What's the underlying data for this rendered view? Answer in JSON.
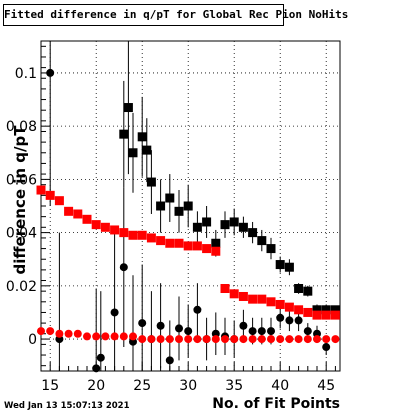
{
  "chart_data": {
    "type": "scatter",
    "title": "Fitted difference in q/pT for Global Rec Pion NoHits",
    "xlabel": "No. of Fit Points",
    "ylabel": "difference in q/pT",
    "xlim": [
      14,
      46.5
    ],
    "ylim": [
      -0.012,
      0.112
    ],
    "x_ticks": [
      15,
      20,
      25,
      30,
      35,
      40,
      45
    ],
    "y_ticks": [
      0,
      0.02,
      0.04,
      0.06,
      0.08,
      0.1
    ],
    "y_tick_labels": [
      "0",
      "0.02",
      "0.04",
      "0.06",
      "0.08",
      "0.1"
    ],
    "grid": true,
    "legend": "none",
    "series": [
      {
        "marker": "circle",
        "color": "#000000",
        "x": [
          15,
          16,
          20,
          20.5,
          22,
          23,
          24,
          25,
          26,
          27,
          28,
          29,
          30,
          31,
          32,
          33,
          34,
          35,
          36,
          37,
          38,
          39,
          40,
          41,
          42,
          43,
          44,
          45
        ],
        "y": [
          0.1,
          0.0,
          -0.011,
          -0.007,
          0.01,
          0.027,
          -0.001,
          0.006,
          0.0,
          0.005,
          -0.008,
          0.004,
          0.003,
          0.011,
          0.0,
          0.002,
          0.001,
          0.0,
          0.005,
          0.003,
          0.003,
          0.003,
          0.008,
          0.007,
          0.007,
          0.003,
          0.002,
          -0.003
        ],
        "yerr": [
          0.05,
          0.04,
          0.03,
          0.025,
          0.03,
          0.03,
          0.025,
          0.022,
          0.018,
          0.016,
          0.015,
          0.012,
          0.01,
          0.01,
          0.008,
          0.008,
          0.007,
          0.007,
          0.006,
          0.005,
          0.005,
          0.005,
          0.004,
          0.004,
          0.004,
          0.003,
          0.003,
          0.003
        ]
      },
      {
        "marker": "square",
        "color": "#000000",
        "x": [
          23,
          23.5,
          24,
          25,
          25.5,
          26,
          27,
          28,
          29,
          30,
          31,
          32,
          33,
          34,
          35,
          36,
          37,
          38,
          39,
          40,
          41,
          42,
          43,
          44,
          45,
          46
        ],
        "y": [
          0.077,
          0.087,
          0.07,
          0.076,
          0.071,
          0.059,
          0.05,
          0.053,
          0.048,
          0.05,
          0.042,
          0.044,
          0.036,
          0.043,
          0.044,
          0.042,
          0.04,
          0.037,
          0.034,
          0.028,
          0.027,
          0.019,
          0.018,
          0.011,
          0.011,
          0.011
        ],
        "yerr": [
          0.02,
          0.025,
          0.015,
          0.015,
          0.012,
          0.012,
          0.01,
          0.009,
          0.008,
          0.008,
          0.006,
          0.006,
          0.005,
          0.005,
          0.005,
          0.004,
          0.004,
          0.004,
          0.004,
          0.003,
          0.003,
          0.002,
          0.002,
          0.002,
          0.002,
          0.001
        ]
      },
      {
        "marker": "square",
        "color": "#ff0000",
        "x": [
          14,
          15,
          16,
          17,
          18,
          19,
          20,
          21,
          22,
          23,
          24,
          25,
          26,
          27,
          28,
          29,
          30,
          31,
          32,
          33,
          34,
          35,
          36,
          37,
          38,
          39,
          40,
          41,
          42,
          43,
          44,
          45,
          46
        ],
        "y": [
          0.056,
          0.054,
          0.052,
          0.048,
          0.047,
          0.045,
          0.043,
          0.042,
          0.041,
          0.04,
          0.039,
          0.039,
          0.038,
          0.037,
          0.036,
          0.036,
          0.035,
          0.035,
          0.034,
          0.033,
          0.019,
          0.017,
          0.016,
          0.015,
          0.015,
          0.014,
          0.013,
          0.012,
          0.011,
          0.01,
          0.009,
          0.009,
          0.009
        ],
        "yerr": []
      },
      {
        "marker": "circle",
        "color": "#ff0000",
        "x": [
          14,
          15,
          16,
          17,
          18,
          19,
          20,
          21,
          22,
          23,
          24,
          25,
          26,
          27,
          28,
          29,
          30,
          31,
          32,
          33,
          34,
          35,
          36,
          37,
          38,
          39,
          40,
          41,
          42,
          43,
          44,
          45,
          46
        ],
        "y": [
          0.003,
          0.003,
          0.002,
          0.002,
          0.002,
          0.001,
          0.001,
          0.001,
          0.001,
          0.001,
          0.001,
          0.0,
          0.0,
          0.0,
          0.0,
          0.0,
          0.0,
          0.0,
          0.0,
          0.0,
          0.0,
          0.0,
          0.0,
          0.0,
          0.0,
          0.0,
          0.0,
          0.0,
          0.0,
          0.0,
          0.0,
          0.0,
          0.0
        ],
        "yerr": []
      }
    ]
  },
  "footer": {
    "timestamp": "Wed Jan 13 15:07:13 2021"
  }
}
